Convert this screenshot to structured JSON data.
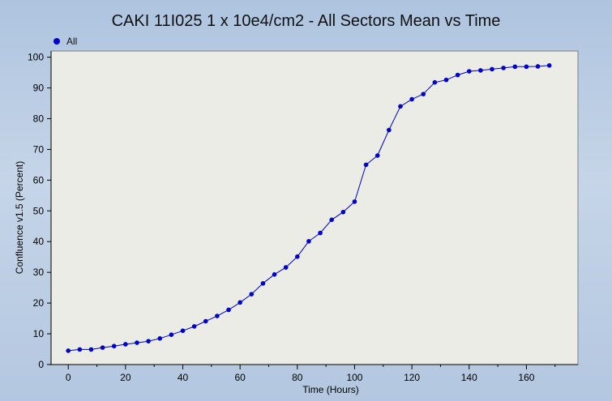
{
  "chart_data": {
    "type": "line",
    "title": "CAKI 11I025 1 x 10e4/cm2 - All Sectors Mean vs Time",
    "xlabel": "Time (Hours)",
    "ylabel": "Confluence v1.5 (Percent)",
    "xlim": [
      -6,
      178
    ],
    "ylim": [
      0,
      102
    ],
    "x_ticks": [
      0,
      20,
      40,
      60,
      80,
      100,
      120,
      140,
      160
    ],
    "y_ticks": [
      0,
      10,
      20,
      30,
      40,
      50,
      60,
      70,
      80,
      90,
      100
    ],
    "legend": "top-left",
    "colors": {
      "series": "#0000cc",
      "plot_bg": "#ecece6"
    },
    "series": [
      {
        "name": "All",
        "x": [
          0,
          4,
          8,
          12,
          16,
          20,
          24,
          28,
          32,
          36,
          40,
          44,
          48,
          52,
          56,
          60,
          64,
          68,
          72,
          76,
          80,
          84,
          88,
          92,
          96,
          100,
          104,
          108,
          112,
          116,
          120,
          124,
          128,
          132,
          136,
          140,
          144,
          148,
          152,
          156,
          160,
          164,
          168
        ],
        "values": [
          4.5,
          4.9,
          4.9,
          5.5,
          6.0,
          6.6,
          7.1,
          7.6,
          8.5,
          9.7,
          11.0,
          12.4,
          14.1,
          15.8,
          17.8,
          20.2,
          22.9,
          26.4,
          29.3,
          31.6,
          35.1,
          40.1,
          42.8,
          47.1,
          49.6,
          53.0,
          65.0,
          68.0,
          76.3,
          84.0,
          86.3,
          88.0,
          91.8,
          92.6,
          94.2,
          95.4,
          95.7,
          96.1,
          96.5,
          96.9,
          96.9,
          97.0,
          97.3
        ]
      }
    ]
  }
}
